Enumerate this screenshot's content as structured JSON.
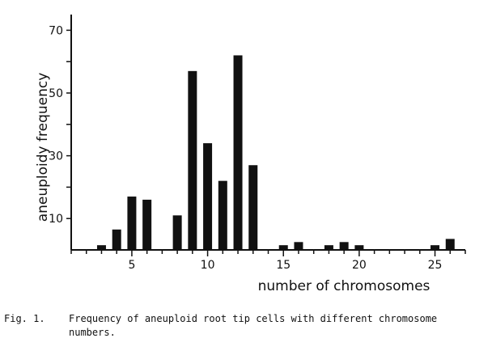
{
  "chart_data": {
    "type": "bar",
    "xlabel": "number of chromosomes",
    "ylabel": "aneuploidy frequency",
    "x": [
      3,
      4,
      5,
      6,
      8,
      9,
      10,
      11,
      12,
      13,
      15,
      16,
      18,
      19,
      20,
      25,
      26
    ],
    "values": [
      1.5,
      6.5,
      17,
      16,
      11,
      57,
      34,
      22,
      62,
      27,
      1.5,
      2.5,
      1.5,
      2.5,
      1.5,
      1.5,
      3.5
    ],
    "xlim": [
      1,
      27
    ],
    "ylim": [
      0,
      75
    ],
    "x_ticks": [
      5,
      10,
      15,
      20,
      25
    ],
    "x_tick_labels": [
      "5",
      "10",
      "15",
      "20",
      "25"
    ],
    "y_ticks": [
      10,
      30,
      50,
      70
    ],
    "y_tick_labels": [
      "10",
      "30",
      "50",
      "70"
    ],
    "grid": false,
    "bar_color": "#111111"
  },
  "caption": {
    "label": "Fig. 1.",
    "text": "Frequency of aneuploid root tip cells with different chromosome numbers."
  }
}
